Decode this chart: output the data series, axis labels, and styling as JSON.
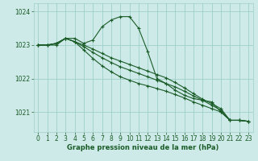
{
  "background_color": "#ceeae8",
  "grid_color": "#9ecfca",
  "line_color": "#1a5c28",
  "xlabel": "Graphe pression niveau de la mer (hPa)",
  "ylim": [
    1020.4,
    1024.25
  ],
  "xlim": [
    -0.5,
    23.5
  ],
  "yticks": [
    1021,
    1022,
    1023,
    1024
  ],
  "xticks": [
    0,
    1,
    2,
    3,
    4,
    5,
    6,
    7,
    8,
    9,
    10,
    11,
    12,
    13,
    14,
    15,
    16,
    17,
    18,
    19,
    20,
    21,
    22,
    23
  ],
  "series": [
    [
      1023.0,
      1023.0,
      1023.0,
      1023.2,
      1023.2,
      1023.05,
      1023.15,
      1023.55,
      1023.75,
      1023.85,
      1023.85,
      1023.5,
      1022.8,
      1022.0,
      1021.85,
      1021.65,
      1021.5,
      1021.4,
      1021.35,
      1021.3,
      1021.0,
      1020.75,
      1020.75,
      1020.72
    ],
    [
      1023.0,
      1023.0,
      1023.05,
      1023.2,
      1023.1,
      1022.85,
      1022.6,
      1022.38,
      1022.2,
      1022.05,
      1021.95,
      1021.85,
      1021.78,
      1021.7,
      1021.62,
      1021.52,
      1021.42,
      1021.3,
      1021.2,
      1021.1,
      1021.0,
      1020.75,
      1020.75,
      1020.72
    ],
    [
      1023.0,
      1023.0,
      1023.05,
      1023.2,
      1023.1,
      1022.95,
      1022.78,
      1022.62,
      1022.48,
      1022.35,
      1022.25,
      1022.15,
      1022.05,
      1021.95,
      1021.85,
      1021.75,
      1021.62,
      1021.48,
      1021.35,
      1021.2,
      1021.05,
      1020.75,
      1020.75,
      1020.72
    ],
    [
      1023.0,
      1023.0,
      1023.05,
      1023.2,
      1023.1,
      1023.0,
      1022.88,
      1022.75,
      1022.62,
      1022.52,
      1022.42,
      1022.32,
      1022.22,
      1022.12,
      1022.02,
      1021.88,
      1021.72,
      1021.55,
      1021.38,
      1021.25,
      1021.1,
      1020.75,
      1020.75,
      1020.72
    ]
  ],
  "xlabel_fontsize": 6.0,
  "tick_fontsize": 5.5,
  "linewidth": 0.8,
  "markersize": 3.0
}
